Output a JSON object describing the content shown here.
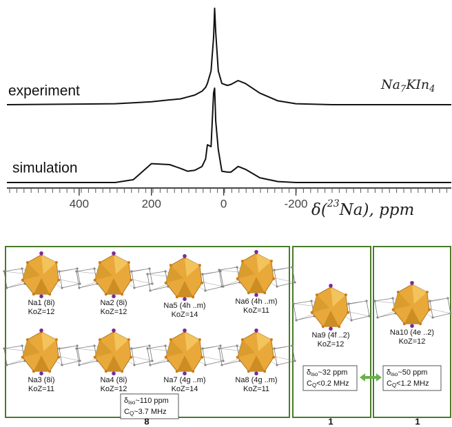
{
  "chart_data": {
    "type": "line",
    "x": [
      600,
      300,
      250,
      200,
      150,
      120,
      100,
      80,
      60,
      50,
      45,
      35,
      28,
      25,
      22,
      15,
      5,
      -10,
      -20,
      -40,
      -60,
      -100,
      -150,
      -200,
      -300,
      -630
    ],
    "series": [
      {
        "name": "experiment",
        "color": "#111111",
        "values": [
          0,
          1,
          2,
          3,
          5,
          6,
          8,
          10,
          14,
          18,
          22,
          35,
          70,
          100,
          75,
          35,
          22,
          20,
          21,
          25,
          22,
          12,
          4,
          1,
          0,
          0
        ]
      },
      {
        "name": "simulation",
        "color": "#111111",
        "values": [
          0,
          0,
          3,
          20,
          19,
          15,
          12,
          13,
          17,
          25,
          40,
          38,
          95,
          100,
          65,
          35,
          12,
          11,
          11,
          17,
          14,
          5,
          1,
          0,
          0,
          0
        ]
      }
    ],
    "xlim": [
      600,
      -630
    ],
    "ylim": [
      0,
      100
    ],
    "xticks": [
      400,
      200,
      0,
      -200
    ],
    "xlabel": {
      "prefix": "δ(",
      "sup": "23",
      "rest": "Na), ppm"
    },
    "formula": [
      "Na",
      "7",
      "KIn",
      "4"
    ]
  },
  "panels": [
    {
      "items": [
        {
          "site": "Na1 (8i)",
          "koz": "KoZ=12"
        },
        {
          "site": "Na2 (8i)",
          "koz": "KoZ=12"
        },
        {
          "site": "Na5 (4h ..m)",
          "koz": "KoZ=14"
        },
        {
          "site": "Na6 (4h ..m)",
          "koz": "KoZ=11"
        },
        {
          "site": "Na3 (8i)",
          "koz": "KoZ=11"
        },
        {
          "site": "Na4 (8i)",
          "koz": "KoZ=12"
        },
        {
          "site": "Na7 (4g ..m)",
          "koz": "KoZ=14"
        },
        {
          "site": "Na8 (4g ..m)",
          "koz": "KoZ=11"
        }
      ],
      "note": [
        [
          "δ",
          "iso",
          "~110 ppm"
        ],
        [
          "C",
          "Q",
          "~3.7 MHz"
        ]
      ],
      "count": "8"
    },
    {
      "items": [
        {
          "site": "Na9 (4f ..2)",
          "koz": "KoZ=12"
        }
      ],
      "note": [
        [
          "δ",
          "iso",
          "~32 ppm"
        ],
        [
          "C",
          "Q",
          "<0.2 MHz"
        ]
      ],
      "count": "1"
    },
    {
      "items": [
        {
          "site": "Na10 (4e ..2)",
          "koz": "KoZ=12"
        }
      ],
      "note": [
        [
          "δ",
          "iso",
          "~50 ppm"
        ],
        [
          "C",
          "Q",
          "<1.2 MHz"
        ]
      ],
      "count": "1"
    }
  ]
}
